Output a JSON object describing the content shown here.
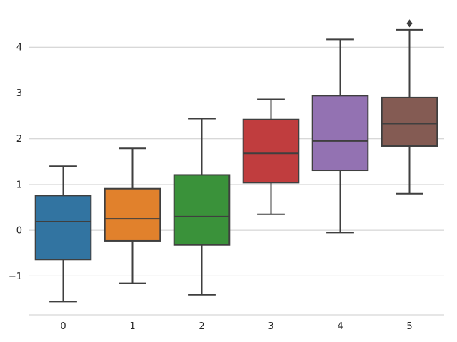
{
  "chart_data": {
    "type": "box",
    "categories": [
      "0",
      "1",
      "2",
      "3",
      "4",
      "5"
    ],
    "boxes": [
      {
        "whisker_low": -1.56,
        "q1": -0.64,
        "median": 0.19,
        "q3": 0.76,
        "whisker_high": 1.4,
        "outliers": [],
        "color": "#3274a1"
      },
      {
        "whisker_low": -1.16,
        "q1": -0.23,
        "median": 0.25,
        "q3": 0.91,
        "whisker_high": 1.79,
        "outliers": [],
        "color": "#e1812c"
      },
      {
        "whisker_low": -1.41,
        "q1": -0.32,
        "median": 0.3,
        "q3": 1.21,
        "whisker_high": 2.44,
        "outliers": [],
        "color": "#3a923a"
      },
      {
        "whisker_low": 0.35,
        "q1": 1.04,
        "median": 1.68,
        "q3": 2.42,
        "whisker_high": 2.86,
        "outliers": [],
        "color": "#c03d3e"
      },
      {
        "whisker_low": -0.05,
        "q1": 1.31,
        "median": 1.95,
        "q3": 2.94,
        "whisker_high": 4.17,
        "outliers": [],
        "color": "#9372b2"
      },
      {
        "whisker_low": 0.8,
        "q1": 1.84,
        "median": 2.33,
        "q3": 2.9,
        "whisker_high": 4.38,
        "outliers": [
          4.52
        ],
        "color": "#845b53"
      }
    ],
    "yticks": [
      -1,
      0,
      1,
      2,
      3,
      4
    ],
    "ylim": [
      -1.85,
      4.72
    ],
    "title": "",
    "xlabel": "",
    "ylabel": "",
    "grid": "horizontal",
    "line_color": "#3f3f3f",
    "grid_color": "#cccccc"
  }
}
